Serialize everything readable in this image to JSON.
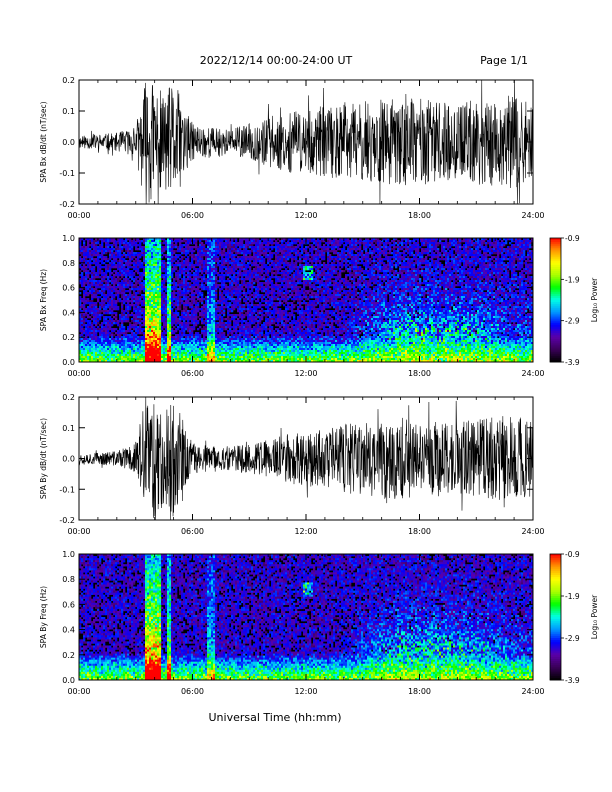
{
  "header": {
    "title": "2022/12/14  00:00-24:00 UT",
    "page": "Page 1/1"
  },
  "colors": {
    "trace": "#000000",
    "spectrogram_background": "#000000",
    "colormap": [
      "#000000",
      "#3a0058",
      "#5b00a8",
      "#0000ff",
      "#0096ff",
      "#00ffe6",
      "#00ff00",
      "#aaff00",
      "#ffff00",
      "#ff9600",
      "#ff0000"
    ]
  },
  "xaxis": {
    "label": "Universal Time (hh:mm)",
    "ticks": [
      "00:00",
      "06:00",
      "12:00",
      "18:00",
      "24:00"
    ],
    "range_hours": [
      0,
      24
    ]
  },
  "colorbar": {
    "label": "Log₁₀ Power",
    "ticks": [
      "-0.9",
      "-1.9",
      "-2.9",
      "-3.9"
    ],
    "range": [
      -3.9,
      -0.9
    ]
  },
  "chart_data": [
    {
      "type": "line",
      "ylabel": "SPA Bx dB/dt (nT/sec)",
      "ylim": [
        -0.2,
        0.2
      ],
      "ytick_labels": [
        "0.2",
        "0.1",
        "0.0",
        "-0.1",
        "-0.2"
      ],
      "x_hours": [
        0,
        1,
        2,
        3,
        3.5,
        4,
        4.5,
        5,
        6,
        7,
        8,
        9,
        10,
        11,
        12,
        13,
        14,
        15,
        16,
        17,
        18,
        19,
        20,
        21,
        22,
        23,
        24
      ],
      "amplitude": [
        0.02,
        0.025,
        0.03,
        0.05,
        0.2,
        0.2,
        0.15,
        0.2,
        0.06,
        0.05,
        0.04,
        0.06,
        0.08,
        0.1,
        0.1,
        0.12,
        0.12,
        0.13,
        0.14,
        0.14,
        0.14,
        0.13,
        0.12,
        0.14,
        0.15,
        0.15,
        0.12
      ]
    },
    {
      "type": "heatmap",
      "ylabel": "SPA Bx Freq (Hz)",
      "ylim": [
        0,
        1.0
      ],
      "ytick_labels": [
        "1.0",
        "0.8",
        "0.6",
        "0.4",
        "0.2",
        "0.0"
      ]
    },
    {
      "type": "line",
      "ylabel": "SPA By dB/dt (nT/sec)",
      "ylim": [
        -0.2,
        0.2
      ],
      "ytick_labels": [
        "0.2",
        "0.1",
        "0.0",
        "-0.1",
        "-0.2"
      ],
      "x_hours": [
        0,
        1,
        2,
        3,
        3.5,
        4,
        4.5,
        5,
        6,
        7,
        8,
        9,
        10,
        11,
        12,
        13,
        14,
        15,
        16,
        17,
        18,
        19,
        20,
        21,
        22,
        23,
        24
      ],
      "amplitude": [
        0.02,
        0.02,
        0.025,
        0.05,
        0.2,
        0.2,
        0.15,
        0.2,
        0.05,
        0.04,
        0.04,
        0.05,
        0.06,
        0.08,
        0.09,
        0.1,
        0.11,
        0.12,
        0.13,
        0.14,
        0.13,
        0.12,
        0.12,
        0.13,
        0.14,
        0.15,
        0.12
      ]
    },
    {
      "type": "heatmap",
      "ylabel": "SPA By Freq (Hz)",
      "ylim": [
        0,
        1.0
      ],
      "ytick_labels": [
        "1.0",
        "0.8",
        "0.6",
        "0.4",
        "0.2",
        "0.0"
      ]
    }
  ]
}
